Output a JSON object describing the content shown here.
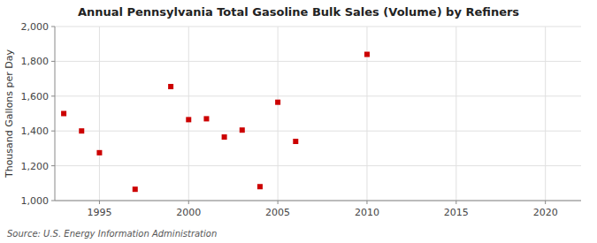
{
  "chart_data": {
    "type": "scatter",
    "title": "Annual Pennsylvania Total Gasoline Bulk Sales (Volume) by Refiners",
    "ylabel": "Thousand Gallons per Day",
    "annotations": [
      "Source: U.S. Energy Information Administration"
    ],
    "x": [
      1993,
      1994,
      1995,
      1997,
      1999,
      2000,
      2001,
      2002,
      2003,
      2004,
      2005,
      2006,
      2010
    ],
    "values": [
      1500,
      1400,
      1275,
      1065,
      1655,
      1465,
      1470,
      1365,
      1405,
      1080,
      1565,
      1340,
      1840
    ],
    "color": "#cc0000",
    "marker": "square",
    "xlim": [
      1992.5,
      2022
    ],
    "ylim": [
      1000,
      2000
    ],
    "xticks": [
      1995,
      2000,
      2005,
      2010,
      2015,
      2020
    ],
    "yticks": [
      {
        "value": 1000,
        "label": "1,000"
      },
      {
        "value": 1200,
        "label": "1,200"
      },
      {
        "value": 1400,
        "label": "1,400"
      },
      {
        "value": 1600,
        "label": "1,600"
      },
      {
        "value": 1800,
        "label": "1,800"
      },
      {
        "value": 2000,
        "label": "2,000"
      }
    ],
    "grid": true
  }
}
